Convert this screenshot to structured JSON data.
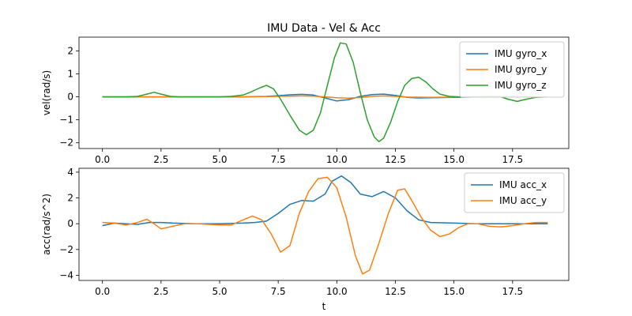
{
  "figure_title": "IMU Data - Vel & Acc",
  "chart_data": [
    {
      "type": "line",
      "title": "IMU Data - Vel & Acc",
      "xlabel": "",
      "ylabel": "vel(rad/s)",
      "xlim": [
        -1.0,
        19.9
      ],
      "ylim": [
        -2.25,
        2.6
      ],
      "xticks": [
        0.0,
        2.5,
        5.0,
        7.5,
        10.0,
        12.5,
        15.0,
        17.5
      ],
      "xtick_labels": [
        "0.0",
        "2.5",
        "5.0",
        "7.5",
        "10.0",
        "12.5",
        "15.0",
        "17.5"
      ],
      "yticks": [
        -2,
        -1,
        0,
        1,
        2
      ],
      "ytick_labels": [
        "−2",
        "−1",
        "0",
        "1",
        "2"
      ],
      "grid": false,
      "legend_position": "top-right",
      "series": [
        {
          "name": "IMU gyro_x",
          "color": "#1f77b4",
          "x": [
            0,
            1,
            2,
            3,
            4,
            5,
            6,
            6.5,
            7,
            7.5,
            8,
            8.5,
            9,
            9.5,
            10,
            10.5,
            11,
            11.5,
            12,
            12.5,
            13,
            13.5,
            14,
            15,
            16,
            17,
            18,
            19
          ],
          "y": [
            0,
            0,
            0,
            0,
            0,
            0,
            0,
            0.01,
            0.02,
            0.05,
            0.09,
            0.11,
            0.08,
            -0.05,
            -0.18,
            -0.12,
            0.02,
            0.1,
            0.12,
            0.06,
            -0.02,
            -0.05,
            -0.04,
            -0.02,
            0,
            0,
            0,
            0
          ]
        },
        {
          "name": "IMU gyro_y",
          "color": "#ff7f0e",
          "x": [
            0,
            2,
            4,
            6,
            7,
            8,
            8.5,
            9,
            9.5,
            10,
            10.5,
            11,
            11.5,
            12,
            12.5,
            13,
            14,
            15,
            16,
            17,
            18,
            19
          ],
          "y": [
            0,
            0,
            0,
            0,
            0.01,
            0.03,
            0.04,
            0.03,
            0,
            -0.04,
            -0.06,
            -0.03,
            0.02,
            0.04,
            0.02,
            -0.01,
            -0.02,
            -0.01,
            0,
            0,
            0,
            0
          ]
        },
        {
          "name": "IMU gyro_z",
          "color": "#2ca02c",
          "x": [
            0,
            0.5,
            1,
            1.5,
            1.9,
            2.2,
            2.5,
            2.9,
            3.3,
            4,
            5,
            5.5,
            6,
            6.3,
            6.7,
            7.0,
            7.3,
            7.6,
            8.0,
            8.4,
            8.7,
            9.0,
            9.3,
            9.6,
            9.9,
            10.15,
            10.4,
            10.7,
            11.0,
            11.3,
            11.6,
            11.8,
            12.0,
            12.3,
            12.6,
            12.9,
            13.2,
            13.5,
            13.8,
            14.1,
            14.4,
            14.8,
            15.2,
            16,
            16.5,
            17,
            17.3,
            17.7,
            18,
            18.5,
            19
          ],
          "y": [
            0,
            0,
            0,
            0.02,
            0.12,
            0.2,
            0.12,
            0.02,
            0,
            0,
            0,
            0.02,
            0.08,
            0.2,
            0.38,
            0.5,
            0.35,
            -0.1,
            -0.8,
            -1.45,
            -1.65,
            -1.45,
            -0.7,
            0.5,
            1.7,
            2.35,
            2.3,
            1.5,
            0.2,
            -1.0,
            -1.75,
            -1.95,
            -1.8,
            -1.1,
            -0.2,
            0.5,
            0.8,
            0.85,
            0.65,
            0.35,
            0.12,
            0.02,
            0,
            0,
            0.02,
            0,
            -0.1,
            -0.2,
            -0.12,
            -0.02,
            0
          ]
        }
      ]
    },
    {
      "type": "line",
      "title": "",
      "xlabel": "t",
      "ylabel": "acc(rad/s^2)",
      "xlim": [
        -1.0,
        19.9
      ],
      "ylim": [
        -4.4,
        4.3
      ],
      "xticks": [
        0.0,
        2.5,
        5.0,
        7.5,
        10.0,
        12.5,
        15.0,
        17.5
      ],
      "xtick_labels": [
        "0.0",
        "2.5",
        "5.0",
        "7.5",
        "10.0",
        "12.5",
        "15.0",
        "17.5"
      ],
      "yticks": [
        -4,
        -2,
        0,
        2,
        4
      ],
      "ytick_labels": [
        "−4",
        "−2",
        "0",
        "2",
        "4"
      ],
      "grid": false,
      "legend_position": "top-right",
      "series": [
        {
          "name": "IMU acc_x",
          "color": "#1f77b4",
          "x": [
            0,
            0.5,
            1,
            1.5,
            2,
            2.5,
            3,
            4,
            5,
            6,
            6.5,
            7,
            7.5,
            8,
            8.5,
            9,
            9.5,
            9.8,
            10.2,
            10.6,
            11,
            11.5,
            12,
            12.5,
            13,
            13.5,
            14,
            15,
            16,
            17,
            18,
            19
          ],
          "y": [
            -0.15,
            0.05,
            0,
            -0.05,
            0.1,
            0.1,
            0.05,
            0,
            0,
            0.05,
            0.1,
            0.2,
            0.8,
            1.5,
            1.8,
            1.75,
            2.3,
            3.3,
            3.7,
            3.2,
            2.3,
            2.1,
            2.5,
            2.0,
            1.0,
            0.3,
            0.1,
            0.05,
            0,
            0,
            0,
            0
          ]
        },
        {
          "name": "IMU acc_y",
          "color": "#ff7f0e",
          "x": [
            0,
            0.5,
            1,
            1.5,
            1.9,
            2.2,
            2.5,
            3,
            3.5,
            4,
            5,
            5.5,
            6,
            6.4,
            6.8,
            7.2,
            7.6,
            8.0,
            8.4,
            8.8,
            9.2,
            9.6,
            10.0,
            10.4,
            10.8,
            11.1,
            11.4,
            11.8,
            12.2,
            12.6,
            12.9,
            13.2,
            13.6,
            14.0,
            14.4,
            14.8,
            15.2,
            15.6,
            16,
            16.5,
            17,
            17.5,
            18,
            18.5,
            19
          ],
          "y": [
            0.1,
            0.05,
            -0.1,
            0.1,
            0.35,
            0.0,
            -0.4,
            -0.2,
            0.0,
            0.0,
            -0.1,
            -0.1,
            0.3,
            0.6,
            0.3,
            -0.8,
            -2.2,
            -1.7,
            0.8,
            2.5,
            3.5,
            3.6,
            2.8,
            0.5,
            -2.5,
            -3.9,
            -3.6,
            -1.5,
            0.8,
            2.6,
            2.7,
            1.8,
            0.5,
            -0.5,
            -1.0,
            -0.8,
            -0.3,
            0.0,
            0.0,
            -0.2,
            -0.25,
            -0.15,
            0.0,
            0.1,
            0.1
          ]
        }
      ]
    }
  ]
}
